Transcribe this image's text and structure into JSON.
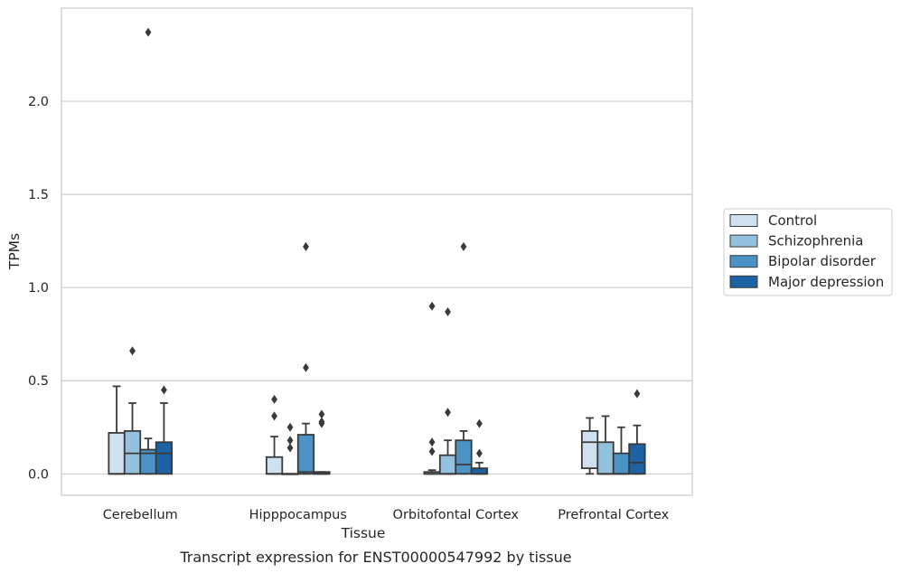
{
  "caption": "Transcript expression for ENST00000547992 by tissue",
  "colors": {
    "Control": "#cfe1f0",
    "Schizophrenia": "#94c1dd",
    "Bipolar disorder": "#4a93c4",
    "Major depression": "#1d62a3",
    "edge": "#3a3a3a",
    "grid": "#cccccc",
    "frame": "#cccccc"
  },
  "chart_data": {
    "type": "box",
    "xlabel": "Tissue",
    "ylabel": "TPMs",
    "ylim": [
      -0.115,
      2.5
    ],
    "yticks": [
      0.0,
      0.5,
      1.0,
      1.5,
      2.0
    ],
    "ytick_labels": [
      "0.0",
      "0.5",
      "1.0",
      "1.5",
      "2.0"
    ],
    "grid": "horizontal",
    "legend_position": "right",
    "categories": [
      "Cerebellum",
      "Hipppocampus",
      "Orbitofontal Cortex",
      "Prefrontal Cortex"
    ],
    "series": [
      {
        "name": "Control",
        "boxes": [
          {
            "whislo": 0.0,
            "q1": 0.0,
            "med": 0.0,
            "q3": 0.22,
            "whishi": 0.47,
            "fliers": []
          },
          {
            "whislo": 0.0,
            "q1": 0.0,
            "med": 0.0,
            "q3": 0.09,
            "whishi": 0.2,
            "fliers": [
              0.4,
              0.31
            ]
          },
          {
            "whislo": 0.0,
            "q1": 0.0,
            "med": 0.0,
            "q3": 0.01,
            "whishi": 0.02,
            "fliers": [
              0.9,
              0.17,
              0.12
            ]
          },
          {
            "whislo": 0.0,
            "q1": 0.03,
            "med": 0.17,
            "q3": 0.23,
            "whishi": 0.3,
            "fliers": []
          }
        ]
      },
      {
        "name": "Schizophrenia",
        "boxes": [
          {
            "whislo": 0.0,
            "q1": 0.0,
            "med": 0.11,
            "q3": 0.23,
            "whishi": 0.38,
            "fliers": [
              0.66
            ]
          },
          {
            "whislo": 0.0,
            "q1": 0.0,
            "med": 0.0,
            "q3": 0.0,
            "whishi": 0.0,
            "fliers": [
              0.25,
              0.18,
              0.14
            ]
          },
          {
            "whislo": 0.0,
            "q1": 0.0,
            "med": 0.0,
            "q3": 0.1,
            "whishi": 0.18,
            "fliers": [
              0.87,
              0.33
            ]
          },
          {
            "whislo": 0.0,
            "q1": 0.0,
            "med": 0.0,
            "q3": 0.17,
            "whishi": 0.31,
            "fliers": []
          }
        ]
      },
      {
        "name": "Bipolar disorder",
        "boxes": [
          {
            "whislo": 0.0,
            "q1": 0.0,
            "med": 0.11,
            "q3": 0.13,
            "whishi": 0.19,
            "fliers": [
              2.37
            ]
          },
          {
            "whislo": 0.0,
            "q1": 0.0,
            "med": 0.01,
            "q3": 0.21,
            "whishi": 0.27,
            "fliers": [
              1.22,
              0.57
            ]
          },
          {
            "whislo": 0.0,
            "q1": 0.0,
            "med": 0.05,
            "q3": 0.18,
            "whishi": 0.23,
            "fliers": [
              1.22
            ]
          },
          {
            "whislo": 0.0,
            "q1": 0.0,
            "med": 0.0,
            "q3": 0.11,
            "whishi": 0.25,
            "fliers": []
          }
        ]
      },
      {
        "name": "Major depression",
        "boxes": [
          {
            "whislo": 0.0,
            "q1": 0.0,
            "med": 0.11,
            "q3": 0.17,
            "whishi": 0.38,
            "fliers": [
              0.45
            ]
          },
          {
            "whislo": 0.0,
            "q1": 0.0,
            "med": 0.0,
            "q3": 0.01,
            "whishi": 0.01,
            "fliers": [
              0.32,
              0.28,
              0.27
            ]
          },
          {
            "whislo": 0.0,
            "q1": 0.0,
            "med": 0.0,
            "q3": 0.03,
            "whishi": 0.06,
            "fliers": [
              0.27,
              0.11
            ]
          },
          {
            "whislo": 0.0,
            "q1": 0.0,
            "med": 0.06,
            "q3": 0.16,
            "whishi": 0.26,
            "fliers": [
              0.43
            ]
          }
        ]
      }
    ]
  }
}
